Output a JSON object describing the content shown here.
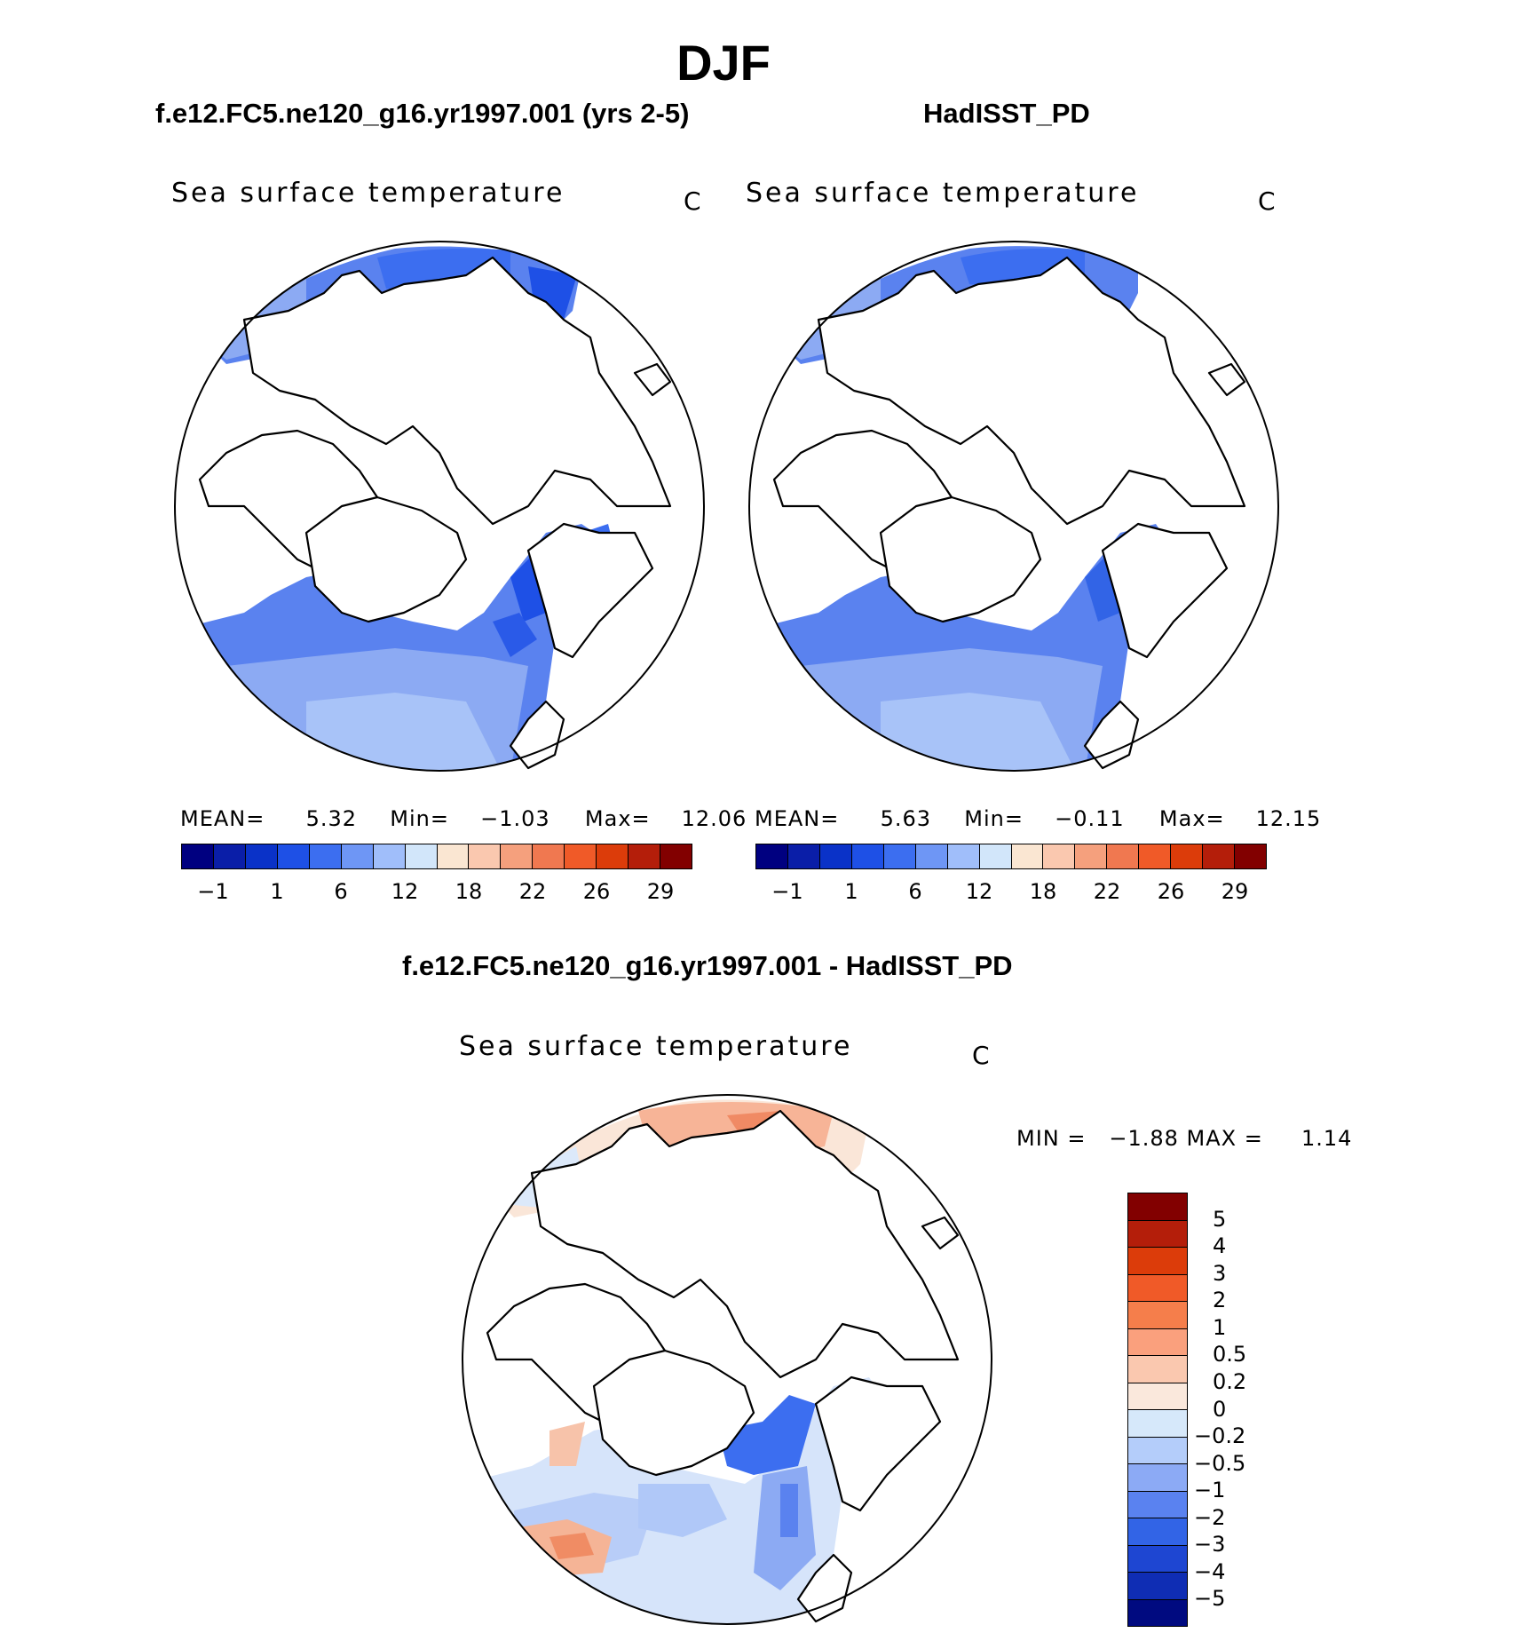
{
  "title": "DJF",
  "panels": {
    "model": {
      "subtitle": "f.e12.FC5.ne120_g16.yr1997.001 (yrs 2-5)",
      "variable": "Sea surface temperature",
      "units": "C",
      "mean_label": "MEAN=",
      "mean_value": "5.32",
      "min_label": "Min=",
      "min_value": "−1.03",
      "max_label": "Max=",
      "max_value": "12.06"
    },
    "obs": {
      "subtitle": "HadISST_PD",
      "variable": "Sea surface temperature",
      "units": "C",
      "mean_label": "MEAN=",
      "mean_value": "5.63",
      "min_label": "Min=",
      "min_value": "−0.11",
      "max_label": "Max=",
      "max_value": "12.15"
    },
    "diff": {
      "subtitle": "f.e12.FC5.ne120_g16.yr1997.001 - HadISST_PD",
      "variable": "Sea surface temperature",
      "units": "C",
      "minmax_text": "MIN =   −1.88 MAX =     1.14"
    }
  },
  "colorbars": {
    "sst_colors": [
      "#000080",
      "#0a1ea8",
      "#0a32c8",
      "#1e50e6",
      "#3c6ef0",
      "#6e96f5",
      "#a0befa",
      "#d2e6fa",
      "#fae6d2",
      "#fac8af",
      "#f5a07d",
      "#f07850",
      "#f05a28",
      "#dc3c0a",
      "#b41e0a",
      "#820000"
    ],
    "sst_ticks": [
      "−1",
      "1",
      "6",
      "12",
      "18",
      "22",
      "26",
      "29"
    ],
    "diff_colors": [
      "#820000",
      "#b41e0a",
      "#dc3c0a",
      "#f05a28",
      "#f57e4b",
      "#faa07d",
      "#fac8af",
      "#fae8dc",
      "#d6e8fa",
      "#b4cdfa",
      "#8caaf5",
      "#5a82f0",
      "#3264e6",
      "#1e46d2",
      "#0f2db4",
      "#000a80"
    ],
    "diff_ticks": [
      "5",
      "4",
      "3",
      "2",
      "1",
      "0.5",
      "0.2",
      "0",
      "−0.2",
      "−0.5",
      "−1",
      "−2",
      "−3",
      "−4",
      "−5"
    ]
  }
}
